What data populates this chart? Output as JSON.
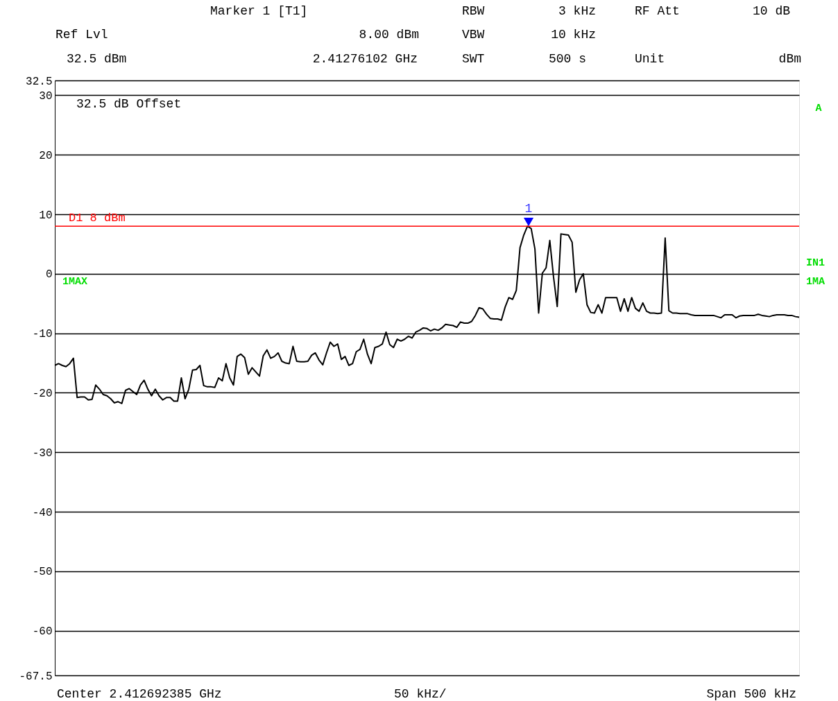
{
  "chart_data": {
    "type": "line",
    "categories": [
      null,
      null,
      null,
      null,
      null,
      null,
      null,
      null,
      null,
      null,
      null,
      null,
      null,
      null,
      null,
      null,
      null,
      null,
      null,
      null,
      null,
      null,
      null,
      null,
      null,
      null,
      null,
      null,
      null,
      null,
      null,
      null,
      null,
      null,
      null,
      null,
      null,
      null,
      null,
      null,
      null,
      null,
      null,
      null,
      null,
      null,
      null,
      null,
      null,
      null,
      null,
      null,
      null,
      null,
      null,
      null,
      null,
      null,
      null,
      null,
      null,
      null,
      null,
      null,
      null,
      null,
      null,
      null,
      null,
      null,
      null,
      null,
      null,
      null,
      null,
      null,
      null,
      null,
      null,
      null,
      null,
      null,
      null,
      null,
      null,
      null,
      null,
      null,
      null,
      null,
      null,
      null,
      null,
      null,
      null,
      null,
      null,
      null,
      null,
      null,
      null,
      null,
      null,
      null,
      null,
      null,
      null,
      null,
      null,
      null,
      null,
      null,
      null,
      null,
      null,
      null,
      null,
      null,
      null,
      null,
      null,
      null,
      null,
      null,
      null,
      null,
      null,
      null,
      null,
      null,
      null,
      null,
      null,
      null,
      null,
      null,
      null,
      null,
      null,
      null,
      null,
      null,
      null,
      null,
      null,
      null,
      null,
      null,
      null,
      null,
      null,
      null,
      null,
      null,
      null,
      null,
      null,
      null,
      null,
      null,
      null,
      null,
      null,
      null,
      null,
      null,
      null,
      null,
      null,
      null,
      null,
      null,
      null,
      null,
      null,
      null,
      null,
      null,
      null,
      null,
      null,
      null,
      null,
      null,
      null,
      null,
      null,
      null,
      null,
      null,
      null,
      null,
      null,
      null,
      null,
      null,
      null,
      null,
      null,
      null,
      null
    ],
    "ylim": [
      -67.5,
      32.5
    ],
    "yticks": [
      32.5,
      30,
      20,
      10,
      0,
      -10,
      -20,
      -30,
      -40,
      -50,
      -60,
      -67.5
    ],
    "tick_labels": "y",
    "grid": "y",
    "series": [
      {
        "color": "#000000",
        "values": [
          -15.4,
          -15.1,
          -15.4,
          -15.6,
          -15.1,
          -14.2,
          -20.8,
          -20.7,
          -20.7,
          -21.2,
          -21.1,
          -18.7,
          -19.4,
          -20.3,
          -20.5,
          -21.0,
          -21.7,
          -21.5,
          -21.8,
          -19.6,
          -19.3,
          -19.8,
          -20.3,
          -18.7,
          -17.9,
          -19.4,
          -20.5,
          -19.4,
          -20.5,
          -21.2,
          -20.8,
          -20.8,
          -21.4,
          -21.4,
          -17.5,
          -21.0,
          -19.4,
          -16.2,
          -16.1,
          -15.4,
          -18.8,
          -19.0,
          -19.0,
          -19.1,
          -17.5,
          -18.0,
          -15.1,
          -17.5,
          -18.7,
          -13.9,
          -13.5,
          -14.1,
          -16.9,
          -15.8,
          -16.5,
          -17.2,
          -13.8,
          -12.8,
          -14.2,
          -13.9,
          -13.3,
          -14.7,
          -15.0,
          -15.1,
          -12.2,
          -14.7,
          -14.8,
          -14.8,
          -14.7,
          -13.7,
          -13.3,
          -14.5,
          -15.3,
          -13.3,
          -11.5,
          -12.2,
          -11.8,
          -14.4,
          -13.9,
          -15.4,
          -15.1,
          -13.1,
          -12.7,
          -11.0,
          -13.5,
          -15.1,
          -12.4,
          -12.2,
          -11.8,
          -9.8,
          -11.9,
          -12.4,
          -11.0,
          -11.3,
          -11.0,
          -10.5,
          -10.8,
          -9.8,
          -9.5,
          -9.1,
          -9.2,
          -9.6,
          -9.3,
          -9.5,
          -9.1,
          -8.5,
          -8.6,
          -8.7,
          -9.0,
          -8.1,
          -8.3,
          -8.3,
          -8.0,
          -7.0,
          -5.7,
          -5.9,
          -6.8,
          -7.5,
          -7.6,
          -7.6,
          -7.8,
          -5.6,
          -4.0,
          -4.3,
          -2.8,
          4.4,
          6.5,
          8.0,
          7.6,
          4.2,
          -6.6,
          0.1,
          1.0,
          5.6,
          -0.5,
          -5.5,
          6.7,
          6.6,
          6.5,
          5.3,
          -3.1,
          -1.0,
          0.0,
          -5.2,
          -6.5,
          -6.6,
          -5.2,
          -6.6,
          -4.0,
          -4.0,
          -4.0,
          -4.0,
          -6.3,
          -4.2,
          -6.3,
          -4.0,
          -5.8,
          -6.3,
          -4.9,
          -6.3,
          -6.6,
          -6.6,
          -6.7,
          -6.6,
          6.0,
          -6.2,
          -6.6,
          -6.6,
          -6.7,
          -6.7,
          -6.7,
          -6.9,
          -7.0,
          -7.0,
          -7.0,
          -7.0,
          -7.0,
          -7.0,
          -7.2,
          -7.4,
          -6.9,
          -6.9,
          -6.9,
          -7.4,
          -7.1,
          -7.0,
          -7.0,
          -7.0,
          -7.0,
          -6.8,
          -7.0,
          -7.1,
          -7.2,
          -7.0,
          -6.9,
          -6.9,
          -6.9,
          -7.0,
          -7.0,
          -7.2,
          -7.3
        ]
      }
    ],
    "ref_lines": [
      {
        "axis": "y",
        "value": 8,
        "label": "D1 8 dBm",
        "color": "#ff0000",
        "line_style": "solid"
      }
    ],
    "annotations": [
      "Marker 1 [T1]",
      "Ref Lvl",
      "8.00 dBm",
      "32.5 dBm",
      "2.41276102 GHz",
      "RBW",
      "3 kHz",
      "VBW",
      "10 kHz",
      "SWT",
      "500 s",
      "RF Att",
      "10 dB",
      "Unit",
      "dBm",
      "32.5 dB Offset",
      "1MAX",
      "A",
      "IN1",
      "1MA",
      "Center 2.412692385 GHz",
      "50 kHz/",
      "Span 500 kHz",
      {
        "text": "1",
        "y": 8
      }
    ]
  }
}
